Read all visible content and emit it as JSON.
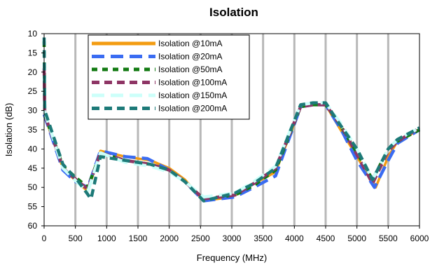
{
  "chart_data": {
    "type": "line",
    "title": "Isolation",
    "xlabel": "Frequency (MHz)",
    "ylabel": "Isolation (dB)",
    "xlim": [
      0,
      6000
    ],
    "ylim": [
      10,
      60
    ],
    "y_inverted": true,
    "xticks": [
      "0",
      "500",
      "1000",
      "1500",
      "2000",
      "2500",
      "3000",
      "3500",
      "4000",
      "4500",
      "5000",
      "5500",
      "6000"
    ],
    "yticks": [
      "10",
      "15",
      "20",
      "25",
      "30",
      "35",
      "40",
      "45",
      "50",
      "55",
      "60"
    ],
    "grid": "vertical",
    "legend_position": "top-left",
    "series": [
      {
        "name": "Isolation @10mA",
        "color": "#f39c12",
        "dash": "solid",
        "points": [
          [
            0,
            31
          ],
          [
            300,
            45
          ],
          [
            550,
            49
          ],
          [
            700,
            51
          ],
          [
            900,
            40.5
          ],
          [
            1300,
            42
          ],
          [
            1700,
            43
          ],
          [
            2000,
            45
          ],
          [
            2250,
            48
          ],
          [
            2550,
            53.5
          ],
          [
            3000,
            52.5
          ],
          [
            3300,
            49.5
          ],
          [
            3700,
            46
          ],
          [
            4100,
            29
          ],
          [
            4300,
            28.5
          ],
          [
            4500,
            28.5
          ],
          [
            4700,
            34
          ],
          [
            5000,
            42
          ],
          [
            5300,
            50
          ],
          [
            5500,
            42
          ],
          [
            5650,
            38
          ],
          [
            6000,
            35
          ]
        ]
      },
      {
        "name": "Isolation @20mA",
        "color": "#3a6cf2",
        "dash": "long-dash",
        "points": [
          [
            0,
            31
          ],
          [
            300,
            45.5
          ],
          [
            500,
            48.5
          ],
          [
            700,
            50
          ],
          [
            900,
            40.5
          ],
          [
            1300,
            42
          ],
          [
            1650,
            42.5
          ],
          [
            2000,
            45.5
          ],
          [
            2250,
            48.5
          ],
          [
            2550,
            53.5
          ],
          [
            3050,
            52.5
          ],
          [
            3350,
            50
          ],
          [
            3700,
            47
          ],
          [
            4100,
            29
          ],
          [
            4300,
            28.5
          ],
          [
            4500,
            28.5
          ],
          [
            4750,
            35
          ],
          [
            5000,
            43
          ],
          [
            5280,
            50
          ],
          [
            5500,
            43
          ],
          [
            5650,
            38.5
          ],
          [
            6000,
            35
          ]
        ]
      },
      {
        "name": "Isolation @50mA",
        "color": "#127a12",
        "dash": "short-dash",
        "points": [
          [
            0,
            12
          ],
          [
            10,
            31
          ],
          [
            300,
            44.5
          ],
          [
            550,
            48
          ],
          [
            700,
            50
          ],
          [
            900,
            41
          ],
          [
            1300,
            43
          ],
          [
            1700,
            44
          ],
          [
            2000,
            45.5
          ],
          [
            2250,
            48.5
          ],
          [
            2550,
            53
          ],
          [
            3050,
            52
          ],
          [
            3350,
            49.5
          ],
          [
            3700,
            45.5
          ],
          [
            4100,
            29
          ],
          [
            4300,
            28.5
          ],
          [
            4500,
            28.5
          ],
          [
            4700,
            33
          ],
          [
            5000,
            41
          ],
          [
            5250,
            48
          ],
          [
            5500,
            40
          ],
          [
            5650,
            38
          ],
          [
            6000,
            35
          ]
        ]
      },
      {
        "name": "Isolation @100mA",
        "color": "#8e3565",
        "dash": "dash",
        "points": [
          [
            0,
            19
          ],
          [
            10,
            31
          ],
          [
            300,
            45
          ],
          [
            550,
            48.5
          ],
          [
            700,
            50.5
          ],
          [
            900,
            41
          ],
          [
            1300,
            43
          ],
          [
            1700,
            44
          ],
          [
            2000,
            45.5
          ],
          [
            2250,
            48.5
          ],
          [
            2550,
            53
          ],
          [
            3050,
            52
          ],
          [
            3350,
            49
          ],
          [
            3700,
            45
          ],
          [
            4100,
            29
          ],
          [
            4300,
            28.5
          ],
          [
            4500,
            28.5
          ],
          [
            4750,
            34
          ],
          [
            5000,
            41.5
          ],
          [
            5250,
            49
          ],
          [
            5500,
            40.5
          ],
          [
            5650,
            38
          ],
          [
            6000,
            34.5
          ]
        ]
      },
      {
        "name": "Isolation @150mA",
        "color": "#ccfffa",
        "dash": "long-dash",
        "points": [
          [
            0,
            30
          ],
          [
            300,
            45
          ],
          [
            550,
            49
          ],
          [
            700,
            51
          ],
          [
            900,
            41
          ],
          [
            1300,
            43.5
          ],
          [
            1700,
            44.5
          ],
          [
            2000,
            46
          ],
          [
            2250,
            48.5
          ],
          [
            2550,
            52.5
          ],
          [
            3050,
            51.5
          ],
          [
            3350,
            48.5
          ],
          [
            3700,
            44.5
          ],
          [
            4100,
            28.5
          ],
          [
            4300,
            28
          ],
          [
            4500,
            28
          ],
          [
            4750,
            33.5
          ],
          [
            5000,
            40
          ],
          [
            5250,
            48
          ],
          [
            5500,
            40
          ],
          [
            5650,
            37.5
          ],
          [
            6000,
            34.5
          ]
        ]
      },
      {
        "name": "Isolation @200mA",
        "color": "#1d7a78",
        "dash": "dash",
        "points": [
          [
            0,
            11
          ],
          [
            10,
            30
          ],
          [
            300,
            44
          ],
          [
            550,
            48.5
          ],
          [
            750,
            53
          ],
          [
            900,
            42
          ],
          [
            1300,
            43
          ],
          [
            1700,
            44
          ],
          [
            2000,
            45.5
          ],
          [
            2250,
            48.5
          ],
          [
            2550,
            53.5
          ],
          [
            3050,
            51.5
          ],
          [
            3350,
            49
          ],
          [
            3700,
            45
          ],
          [
            4100,
            28.5
          ],
          [
            4300,
            28
          ],
          [
            4500,
            28
          ],
          [
            4700,
            33
          ],
          [
            5000,
            40
          ],
          [
            5250,
            48
          ],
          [
            5500,
            40
          ],
          [
            5650,
            37.5
          ],
          [
            6000,
            34.5
          ]
        ]
      }
    ]
  }
}
